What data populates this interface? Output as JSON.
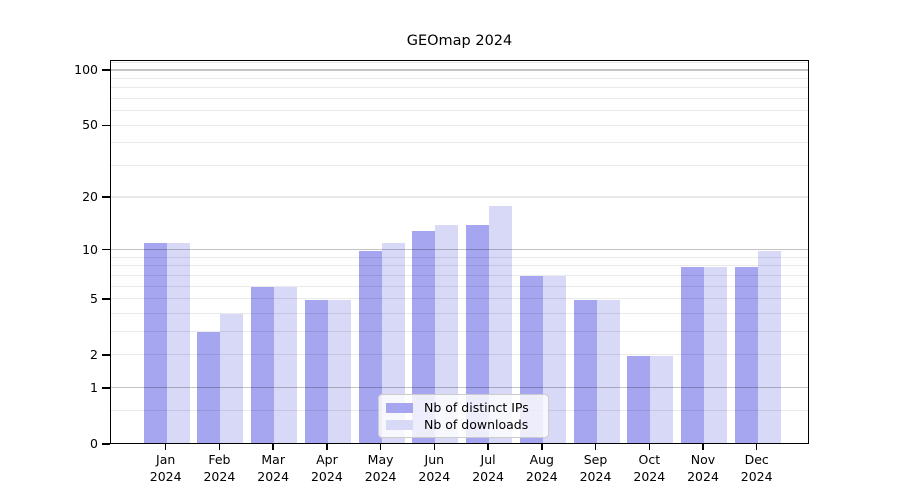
{
  "title": "GEOmap 2024",
  "legend": {
    "position": "lower center",
    "items": [
      {
        "label": "Nb of distinct IPs",
        "color": "#a6a6f0"
      },
      {
        "label": "Nb of downloads",
        "color": "#d8d8f7"
      }
    ]
  },
  "y_axis": {
    "tick_values": [
      0,
      1,
      2,
      5,
      10,
      20,
      50,
      100
    ],
    "tick_labels": [
      "0",
      "1",
      "2",
      "5",
      "10",
      "20",
      "50",
      "100"
    ]
  },
  "x_axis": {
    "months": [
      "Jan",
      "Feb",
      "Mar",
      "Apr",
      "May",
      "Jun",
      "Jul",
      "Aug",
      "Sep",
      "Oct",
      "Nov",
      "Dec"
    ],
    "year": "2024"
  },
  "chart_data": {
    "type": "bar",
    "title": "GEOmap 2024",
    "categories": [
      "Jan 2024",
      "Feb 2024",
      "Mar 2024",
      "Apr 2024",
      "May 2024",
      "Jun 2024",
      "Jul 2024",
      "Aug 2024",
      "Sep 2024",
      "Oct 2024",
      "Nov 2024",
      "Dec 2024"
    ],
    "series": [
      {
        "name": "Nb of distinct IPs",
        "color": "#a6a6f0",
        "values": [
          11,
          3,
          6,
          5,
          10,
          13,
          14,
          7,
          5,
          2,
          8,
          8
        ]
      },
      {
        "name": "Nb of downloads",
        "color": "#d8d8f7",
        "values": [
          11,
          4,
          6,
          5,
          11,
          14,
          18,
          7,
          5,
          2,
          8,
          10
        ]
      }
    ],
    "yscale": "symlog ln(1+v)",
    "ylim": [
      0,
      113.2
    ],
    "y_ticks": [
      0,
      1,
      2,
      5,
      10,
      20,
      50,
      100
    ],
    "y_major_gridlines": [
      1,
      10,
      100
    ],
    "y_minor_gridlines": [
      0.5,
      2,
      3,
      4,
      5,
      6,
      7,
      8,
      9,
      20,
      30,
      40,
      50,
      60,
      70,
      80,
      90,
      110
    ],
    "grid": true,
    "legend_position": "lower center"
  }
}
